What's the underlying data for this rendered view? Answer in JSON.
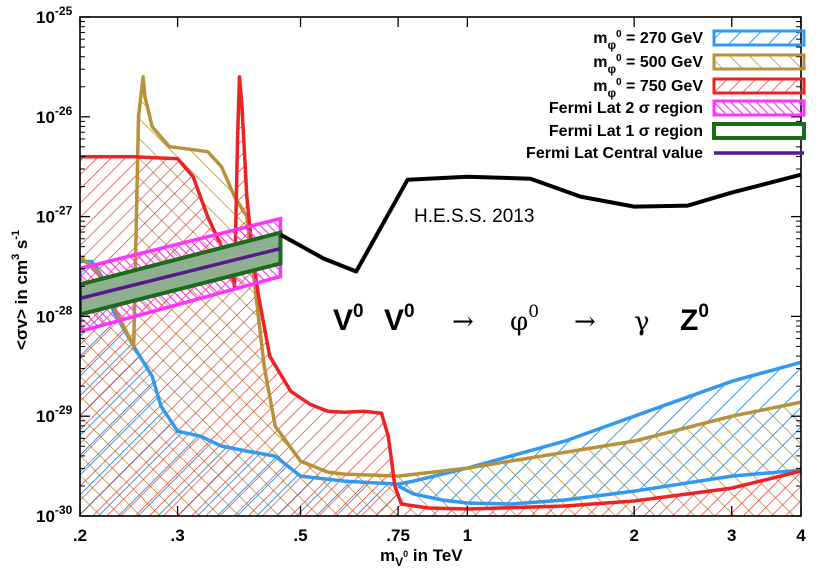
{
  "chart_data": {
    "type": "area",
    "xlabel": "m_{V^0} in TeV",
    "ylabel": "<σv> in cm^3 s^-1",
    "xscale": "log",
    "yscale": "log",
    "xlim": [
      0.2,
      4
    ],
    "ylim": [
      1e-30,
      1e-25
    ],
    "x_ticks": [
      {
        "v": 0.2,
        "label": ".2"
      },
      {
        "v": 0.3,
        "label": ".3"
      },
      {
        "v": 0.5,
        "label": ".5"
      },
      {
        "v": 0.75,
        "label": ".75"
      },
      {
        "v": 1,
        "label": "1"
      },
      {
        "v": 2,
        "label": "2"
      },
      {
        "v": 3,
        "label": "3"
      },
      {
        "v": 4,
        "label": "4"
      }
    ],
    "y_ticks": [
      {
        "e": -30,
        "label": "10",
        "exp": "-30"
      },
      {
        "e": -29,
        "label": "10",
        "exp": "-29"
      },
      {
        "e": -28,
        "label": "10",
        "exp": "-28"
      },
      {
        "e": -27,
        "label": "10",
        "exp": "-27"
      },
      {
        "e": -26,
        "label": "10",
        "exp": "-26"
      },
      {
        "e": -25,
        "label": "10",
        "exp": "-25"
      }
    ],
    "legend_position": "top-right",
    "series": [
      {
        "name_base": "m",
        "name_sub": "φ",
        "name_sup": "0",
        "name_rest": " = 270 GeV",
        "color": "#3399ee",
        "style": "hatch-backslash",
        "upper": [
          [
            0.2,
            -27.45
          ],
          [
            0.21,
            -27.45
          ],
          [
            0.22,
            -27.62
          ],
          [
            0.23,
            -27.95
          ],
          [
            0.25,
            -28.3
          ],
          [
            0.27,
            -28.6
          ],
          [
            0.28,
            -28.9
          ],
          [
            0.3,
            -29.15
          ],
          [
            0.33,
            -29.2
          ],
          [
            0.36,
            -29.3
          ],
          [
            0.4,
            -29.35
          ],
          [
            0.45,
            -29.4
          ],
          [
            0.5,
            -29.6
          ],
          [
            0.6,
            -29.65
          ],
          [
            0.75,
            -29.68
          ],
          [
            0.8,
            -29.65
          ],
          [
            1.0,
            -29.52
          ],
          [
            1.5,
            -29.25
          ],
          [
            2.0,
            -29.0
          ],
          [
            3.0,
            -28.65
          ],
          [
            4.0,
            -28.46
          ]
        ],
        "lower": [
          [
            0.75,
            -29.7
          ],
          [
            0.8,
            -29.78
          ],
          [
            0.9,
            -29.84
          ],
          [
            1.0,
            -29.87
          ],
          [
            1.2,
            -29.88
          ],
          [
            1.5,
            -29.84
          ],
          [
            2.0,
            -29.75
          ],
          [
            3.0,
            -29.6
          ],
          [
            4.0,
            -29.54
          ]
        ]
      },
      {
        "name_base": "m",
        "name_sub": "φ",
        "name_sup": "0",
        "name_rest": " = 500 GeV",
        "color": "#b8923a",
        "style": "hatch-slash",
        "upper": [
          [
            0.2,
            -27.4
          ],
          [
            0.215,
            -27.55
          ],
          [
            0.23,
            -27.9
          ],
          [
            0.245,
            -28.2
          ],
          [
            0.25,
            -28.3
          ],
          [
            0.255,
            -26.0
          ],
          [
            0.26,
            -25.6
          ],
          [
            0.262,
            -25.8
          ],
          [
            0.27,
            -26.1
          ],
          [
            0.29,
            -26.3
          ],
          [
            0.32,
            -26.33
          ],
          [
            0.34,
            -26.35
          ],
          [
            0.36,
            -26.5
          ],
          [
            0.38,
            -26.8
          ],
          [
            0.4,
            -27.0
          ],
          [
            0.43,
            -28.5
          ],
          [
            0.45,
            -29.1
          ],
          [
            0.5,
            -29.45
          ],
          [
            0.56,
            -29.56
          ],
          [
            0.6,
            -29.58
          ],
          [
            0.75,
            -29.6
          ],
          [
            1.0,
            -29.52
          ],
          [
            2.0,
            -29.25
          ],
          [
            3.0,
            -29.0
          ],
          [
            4.0,
            -28.86
          ]
        ],
        "lower": []
      },
      {
        "name_base": "m",
        "name_sub": "φ",
        "name_sup": "0",
        "name_rest": " = 750 GeV",
        "color": "#ee2222",
        "style": "hatch-backslash-dense",
        "upper": [
          [
            0.2,
            -26.4
          ],
          [
            0.25,
            -26.4
          ],
          [
            0.3,
            -26.42
          ],
          [
            0.32,
            -26.6
          ],
          [
            0.34,
            -27.0
          ],
          [
            0.36,
            -27.3
          ],
          [
            0.375,
            -27.55
          ],
          [
            0.38,
            -27.7
          ],
          [
            0.385,
            -26.2
          ],
          [
            0.388,
            -25.6
          ],
          [
            0.392,
            -25.9
          ],
          [
            0.4,
            -26.8
          ],
          [
            0.41,
            -27.4
          ],
          [
            0.42,
            -27.8
          ],
          [
            0.44,
            -28.4
          ],
          [
            0.48,
            -28.75
          ],
          [
            0.52,
            -28.88
          ],
          [
            0.56,
            -28.95
          ],
          [
            0.6,
            -28.96
          ],
          [
            0.65,
            -28.95
          ],
          [
            0.7,
            -28.97
          ],
          [
            0.72,
            -29.2
          ],
          [
            0.74,
            -29.7
          ],
          [
            0.76,
            -29.88
          ],
          [
            0.85,
            -29.92
          ],
          [
            1.0,
            -29.93
          ],
          [
            1.5,
            -29.9
          ],
          [
            2.0,
            -29.85
          ],
          [
            3.0,
            -29.72
          ],
          [
            4.0,
            -29.55
          ]
        ],
        "lower": []
      }
    ],
    "fermi": {
      "two_sigma_label": "Fermi Lat 2 σ region",
      "one_sigma_label": "Fermi Lat 1 σ region",
      "central_label": "Fermi Lat Central value",
      "two_sigma_color": "#ff33ff",
      "one_sigma_color": "#1a6b1a",
      "one_sigma_fill": "#8fb08f",
      "central_color": "#551a8b",
      "x_range": [
        0.2,
        0.46
      ],
      "two_sigma_upper": [
        -27.52,
        -27.02
      ],
      "two_sigma_lower": [
        -28.15,
        -27.6
      ],
      "one_sigma_upper": [
        -27.68,
        -27.16
      ],
      "one_sigma_lower": [
        -27.98,
        -27.47
      ],
      "central": [
        -27.82,
        -27.32
      ]
    },
    "hess": {
      "label": "H.E.S.S. 2013",
      "color": "#000000",
      "points": [
        [
          0.46,
          -27.18
        ],
        [
          0.55,
          -27.42
        ],
        [
          0.63,
          -27.55
        ],
        [
          0.78,
          -26.63
        ],
        [
          1.0,
          -26.6
        ],
        [
          1.3,
          -26.62
        ],
        [
          1.6,
          -26.8
        ],
        [
          2.0,
          -26.9
        ],
        [
          2.5,
          -26.89
        ],
        [
          3.0,
          -26.76
        ],
        [
          4.0,
          -26.58
        ]
      ]
    },
    "annotation": {
      "V": "V",
      "sup0": "0",
      "arrow": "→",
      "phi": "φ",
      "gamma": "γ",
      "Z": "Z"
    },
    "fermi_legend_row": "Fermi Lat Central value"
  }
}
